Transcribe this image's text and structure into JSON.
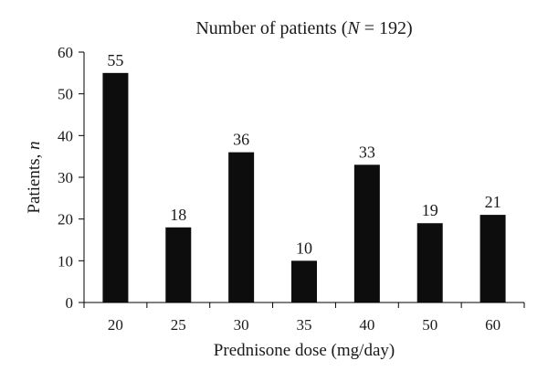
{
  "chart_data": {
    "type": "bar",
    "title_prefix": "Number of patients (",
    "title_var": "N",
    "title_suffix": " = 192)",
    "xlabel": "Prednisone dose (mg/day)",
    "ylabel_prefix": "Patients, ",
    "ylabel_var": "n",
    "categories": [
      "20",
      "25",
      "30",
      "35",
      "40",
      "50",
      "60"
    ],
    "values": [
      55,
      18,
      36,
      10,
      33,
      19,
      21
    ],
    "data_labels": [
      "55",
      "18",
      "36",
      "10",
      "33",
      "19",
      "21"
    ],
    "ylim": [
      0,
      60
    ],
    "yticks": [
      0,
      10,
      20,
      30,
      40,
      50,
      60
    ],
    "grid": false,
    "legend": "none",
    "bar_color": "#0d0d0d",
    "axis_color": "#000000"
  }
}
